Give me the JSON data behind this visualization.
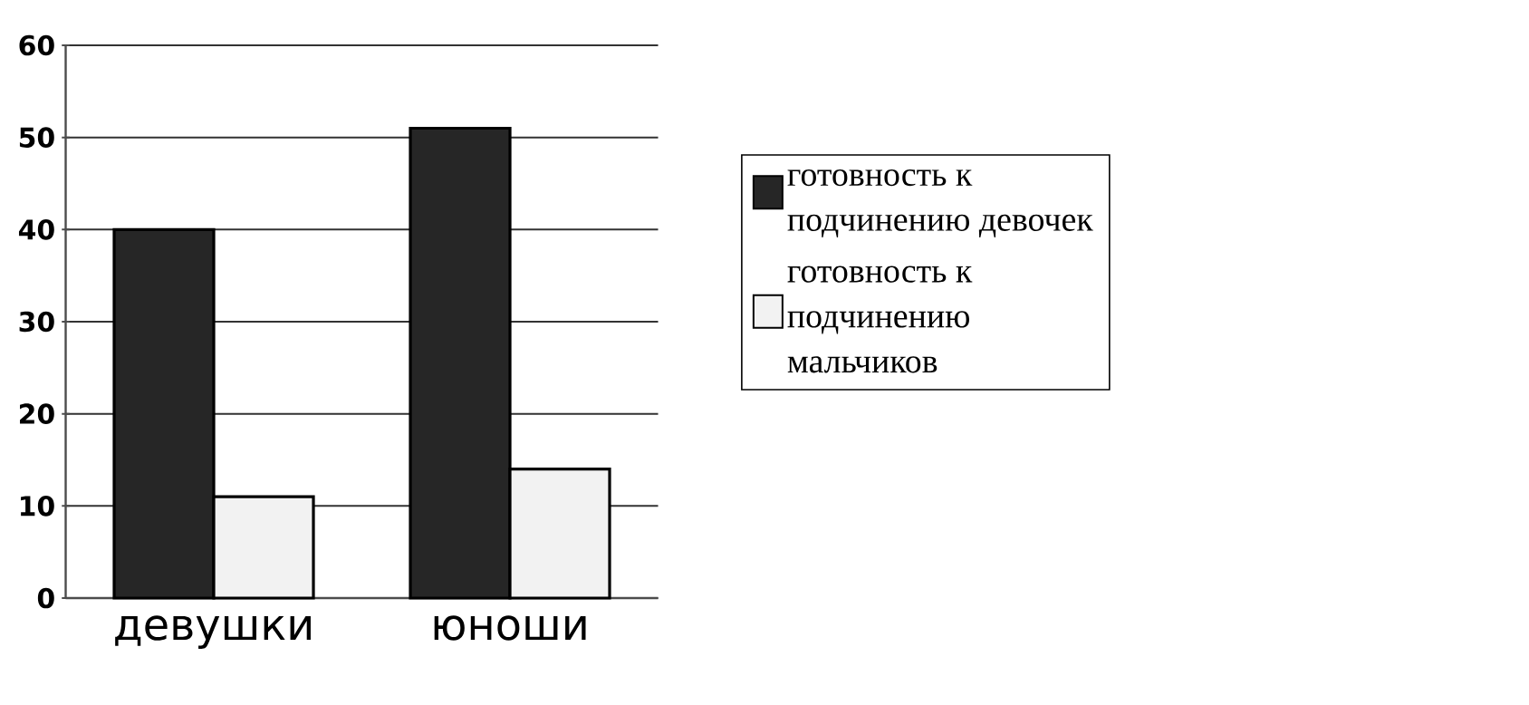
{
  "chart_data": {
    "type": "bar",
    "categories": [
      "девушки",
      "юноши"
    ],
    "series": [
      {
        "name": "готовность к подчинению девочек",
        "color": "#262626",
        "values": [
          40,
          51
        ]
      },
      {
        "name": "готовность к подчинению мальчиков",
        "color": "#f2f2f2",
        "values": [
          11,
          14
        ]
      }
    ],
    "ylim": [
      0,
      60
    ],
    "yticks": [
      0,
      10,
      20,
      30,
      40,
      50,
      60
    ],
    "grid": "y",
    "legend": "right"
  }
}
